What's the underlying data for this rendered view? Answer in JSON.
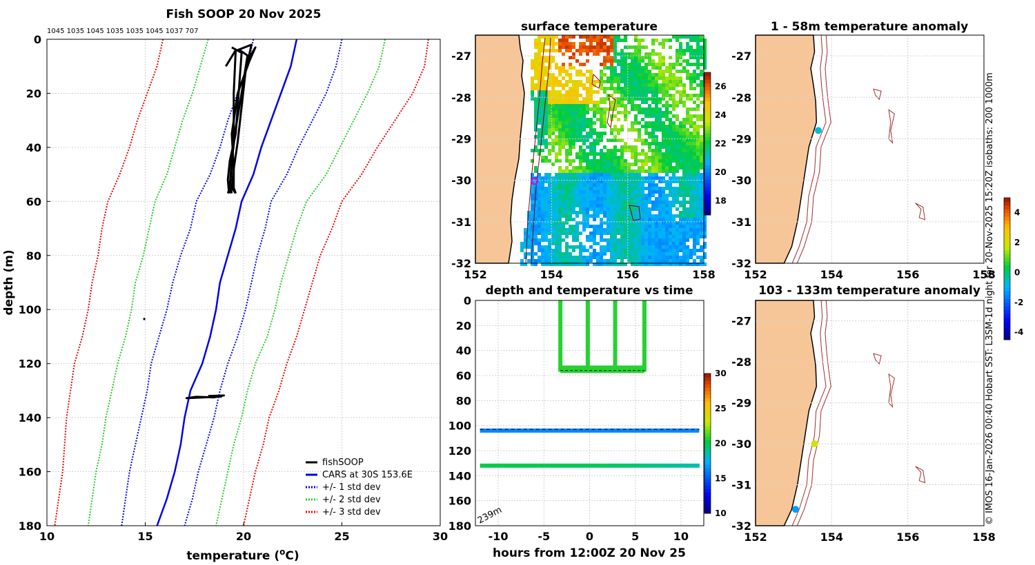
{
  "chart_data": [
    {
      "type": "line",
      "panel": "profile",
      "title": "Fish SOOP 20 Nov 2025",
      "subtitle": "1045 1035 1045 1035 1035 1045 1037 707",
      "xlabel": "temperature (°C)",
      "xlabel_main": "temperature (",
      "xlabel_sup": "o",
      "xlabel_end": "C)",
      "ylabel": "depth (m)",
      "xlim": [
        10,
        30
      ],
      "ylim": [
        180,
        0
      ],
      "xticks": [
        "10",
        "15",
        "20",
        "25",
        "30"
      ],
      "yticks": [
        "0",
        "20",
        "40",
        "60",
        "80",
        "100",
        "120",
        "140",
        "160",
        "180"
      ],
      "depth": [
        0,
        10,
        20,
        30,
        40,
        50,
        60,
        70,
        80,
        90,
        100,
        110,
        120,
        130,
        140,
        150,
        160,
        170,
        180
      ],
      "series": [
        {
          "name": "CARS at 30S 153.6E",
          "color": "#0000ee",
          "dash": "",
          "values": [
            22.7,
            22.4,
            21.9,
            21.4,
            20.9,
            20.5,
            19.9,
            19.6,
            19.2,
            18.8,
            18.6,
            18.3,
            17.9,
            17.3,
            17.0,
            16.8,
            16.5,
            16.1,
            15.6
          ]
        },
        {
          "name": "+1 std dev",
          "color": "#0000ee",
          "dash": "2,2",
          "values": [
            25.0,
            24.7,
            24.2,
            23.5,
            22.8,
            22.2,
            21.4,
            21.1,
            20.7,
            20.4,
            20.1,
            19.7,
            19.2,
            18.8,
            18.5,
            18.1,
            17.7,
            17.4,
            17.0
          ]
        },
        {
          "name": "-1 std dev",
          "color": "#0000ee",
          "dash": "2,2",
          "values": [
            20.5,
            20.2,
            19.7,
            19.2,
            18.8,
            18.3,
            17.6,
            17.3,
            16.8,
            16.4,
            16.1,
            15.7,
            15.3,
            15.1,
            14.8,
            14.5,
            14.2,
            14.0,
            13.8
          ]
        },
        {
          "name": "+2 std dev",
          "color": "#22cc22",
          "dash": "2,2",
          "values": [
            27.2,
            26.9,
            26.3,
            25.6,
            24.9,
            24.2,
            23.2,
            22.7,
            22.3,
            21.9,
            21.6,
            21.2,
            20.6,
            20.2,
            19.9,
            19.5,
            19.2,
            18.9,
            18.6
          ]
        },
        {
          "name": "-2 std dev",
          "color": "#22cc22",
          "dash": "2,2",
          "values": [
            18.2,
            17.8,
            17.4,
            16.9,
            16.5,
            16.1,
            15.5,
            15.2,
            14.9,
            14.5,
            14.3,
            14.0,
            13.6,
            13.3,
            13.0,
            12.8,
            12.5,
            12.3,
            12.1
          ]
        },
        {
          "name": "+3 std dev",
          "color": "#ee0000",
          "dash": "2,2",
          "values": [
            29.4,
            29.2,
            28.6,
            27.7,
            26.8,
            26.0,
            25.0,
            24.5,
            23.9,
            23.5,
            23.1,
            22.7,
            22.2,
            21.8,
            21.3,
            21.0,
            20.6,
            20.3,
            20.0
          ]
        },
        {
          "name": "-3 std dev",
          "color": "#ee0000",
          "dash": "2,2",
          "values": [
            15.9,
            15.6,
            15.1,
            14.6,
            14.2,
            13.7,
            13.1,
            12.8,
            12.6,
            12.3,
            12.1,
            11.8,
            11.4,
            11.2,
            11.0,
            10.9,
            10.8,
            10.6,
            10.4
          ]
        }
      ],
      "fishSOOP": [
        {
          "t": [
            19.4,
            19.9,
            19.8,
            19.7,
            19.6,
            19.3,
            19.2,
            19.25,
            19.2
          ],
          "d": [
            3,
            5,
            15,
            25,
            35,
            45,
            52,
            56,
            57
          ]
        },
        {
          "t": [
            19.7,
            20.4,
            20.1,
            19.9,
            19.7,
            19.5,
            19.4,
            19.6
          ],
          "d": [
            4,
            2,
            12,
            25,
            38,
            48,
            55,
            57
          ]
        },
        {
          "t": [
            20.2,
            20.6,
            20.3,
            19.7,
            19.4,
            19.5,
            19.5,
            19.6
          ],
          "d": [
            8,
            3,
            8,
            20,
            35,
            48,
            55,
            57
          ]
        },
        {
          "t": [
            19.8,
            20.2,
            19.9,
            19.6,
            19.4,
            19.3,
            19.4
          ],
          "d": [
            4,
            6,
            20,
            33,
            45,
            54,
            57
          ]
        },
        {
          "t": [
            19.1,
            19.6,
            19.5,
            19.5,
            19.4,
            19.3,
            19.3
          ],
          "d": [
            10,
            4,
            20,
            35,
            47,
            55,
            57
          ]
        },
        {
          "t": [
            14.9,
            15.0
          ],
          "d": [
            103.5,
            103.5
          ]
        },
        {
          "t": [
            18.2,
            19.0,
            18.5,
            17.6,
            17.1,
            18.9
          ],
          "d": [
            132.0,
            131.8,
            132.5,
            132.3,
            132.8,
            132.2
          ]
        }
      ],
      "legend": [
        {
          "label": "fishSOOP",
          "color": "#000000",
          "dash": ""
        },
        {
          "label": "CARS at 30S 153.6E",
          "color": "#0000ee",
          "dash": ""
        },
        {
          "label": "+/- 1 std dev",
          "color": "#0000ee",
          "dash": "2,2"
        },
        {
          "label": "+/- 2 std dev",
          "color": "#22cc22",
          "dash": "2,2"
        },
        {
          "label": "+/- 3 std dev",
          "color": "#ee0000",
          "dash": "2,2"
        }
      ],
      "legend_position": "bottom-right"
    },
    {
      "type": "heatmap",
      "panel": "sst_map",
      "title": "surface temperature",
      "xlim": [
        152,
        158
      ],
      "ylim": [
        -32,
        -26.5
      ],
      "xticks": [
        "152",
        "154",
        "156",
        "158"
      ],
      "yticks": [
        "-27",
        "-28",
        "-29",
        "-30",
        "-31",
        "-32"
      ],
      "colorbar": {
        "range": [
          17,
          27
        ],
        "ticks": [
          "18",
          "20",
          "22",
          "24",
          "26"
        ]
      },
      "marker": {
        "lon": 153.55,
        "lat": -30.02,
        "color": "#dd00dd"
      }
    },
    {
      "type": "scatter",
      "panel": "depth_time",
      "title": "depth and temperature vs time",
      "xlabel": "hours from 12:00Z 20 Nov 25",
      "xlim": [
        -12.5,
        12.5
      ],
      "ylim": [
        180,
        0
      ],
      "xticks": [
        "-10",
        "-5",
        "0",
        "5",
        "10"
      ],
      "yticks": [
        "0",
        "20",
        "40",
        "60",
        "80",
        "100",
        "120",
        "140",
        "160",
        "180"
      ],
      "bottom_depth_label": "239m",
      "colorbar": {
        "range": [
          10,
          30
        ],
        "ticks": [
          "10",
          "15",
          "20",
          "25",
          "30"
        ]
      },
      "profiles": [
        {
          "hour": -3.2,
          "temp": 20.5
        },
        {
          "hour": -0.2,
          "temp": 20.5
        },
        {
          "hour": 2.8,
          "temp": 20.5
        },
        {
          "hour": 6.0,
          "temp": 20.5
        }
      ],
      "profile_max_depth": 57,
      "mid_range": [
        -3.2,
        6.0
      ],
      "layer_104m": {
        "depth": 104,
        "temp": 16.0,
        "line_depth": 103
      },
      "layer_132m": {
        "depth": 132,
        "temp_start": 19.8,
        "temp_end": 18.3
      },
      "dashed_line_depth": 56
    },
    {
      "type": "scatter",
      "panel": "anom_upper",
      "title": "1 - 58m temperature anomaly",
      "xlim": [
        152,
        158
      ],
      "ylim": [
        -32,
        -26.5
      ],
      "xticks": [
        "152",
        "154",
        "156",
        "158"
      ],
      "yticks": [
        "-27",
        "-28",
        "-29",
        "-30",
        "-31",
        "-32"
      ],
      "points": [
        {
          "lon": 153.65,
          "lat": -28.8,
          "anomaly": -0.8
        }
      ]
    },
    {
      "type": "scatter",
      "panel": "anom_lower",
      "title": "103 - 133m temperature anomaly",
      "xlim": [
        152,
        158
      ],
      "ylim": [
        -32,
        -26.5
      ],
      "xticks": [
        "152",
        "154",
        "156",
        "158"
      ],
      "yticks": [
        "-27",
        "-28",
        "-29",
        "-30",
        "-31",
        "-32"
      ],
      "points": [
        {
          "lon": 153.55,
          "lat": -30.0,
          "anomaly": 1.8
        },
        {
          "lon": 153.05,
          "lat": -31.6,
          "anomaly": -1.4
        }
      ],
      "colorbar": {
        "range": [
          -4.5,
          5
        ],
        "ticks": [
          "4",
          "2",
          "0",
          "-2",
          "-4"
        ]
      }
    }
  ],
  "side_text": "© IMOS 16-Jan-2026 00:40 Hobart SST: L3SM-1d night for 20-Nov-2025 15:20Z isobaths: 200  1000m"
}
